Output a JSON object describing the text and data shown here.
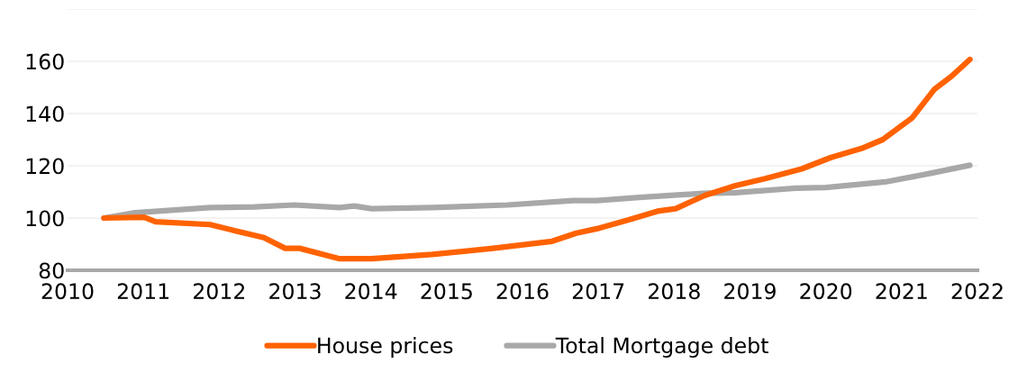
{
  "chart_data": {
    "type": "line",
    "series": [
      {
        "name": "House prices",
        "color": "#ff6200",
        "x": [
          2010.48,
          2011.01,
          2011.16,
          2011.88,
          2012.2,
          2012.59,
          2012.87,
          2013.06,
          2013.59,
          2014.01,
          2014.81,
          2015.61,
          2016.39,
          2016.71,
          2016.98,
          2017.39,
          2017.78,
          2018.02,
          2018.41,
          2018.81,
          2019.2,
          2019.68,
          2020.07,
          2020.47,
          2020.75,
          2021.14,
          2021.43,
          2021.66,
          2021.9
        ],
        "values": [
          100,
          100.3,
          98.6,
          97.5,
          95.2,
          92.5,
          88.4,
          88.4,
          84.4,
          84.4,
          86.1,
          88.4,
          91.1,
          94.2,
          95.9,
          99.2,
          102.6,
          103.6,
          108.7,
          112.4,
          115.1,
          118.8,
          123.2,
          126.6,
          130,
          138.4,
          149.2,
          154.3,
          160.7
        ]
      },
      {
        "name": "Total Mortgage debt",
        "color": "#a8a8a8",
        "x": [
          2010.48,
          2010.89,
          2011.88,
          2012.47,
          2012.99,
          2013.59,
          2013.78,
          2014.01,
          2014.81,
          2015.8,
          2016.67,
          2016.98,
          2017.58,
          2018.37,
          2018.81,
          2019.6,
          2020.0,
          2020.78,
          2021.38,
          2021.9
        ],
        "values": [
          100,
          102,
          104,
          104.3,
          105,
          104,
          104.6,
          103.6,
          104,
          105,
          106.7,
          106.7,
          108,
          109.4,
          109.7,
          111.4,
          111.7,
          113.8,
          117.1,
          120.2
        ]
      }
    ],
    "xlim": [
      2010,
      2022
    ],
    "xticks": [
      2010,
      2011,
      2012,
      2013,
      2014,
      2015,
      2016,
      2017,
      2018,
      2019,
      2020,
      2021,
      2022
    ],
    "ylim": [
      80,
      180
    ],
    "yticks": [
      80,
      100,
      120,
      140,
      160,
      {
        "value": 180,
        "label": null
      }
    ],
    "grid": "y",
    "legend": "bottom",
    "marker": "none",
    "line_style": "solid"
  }
}
